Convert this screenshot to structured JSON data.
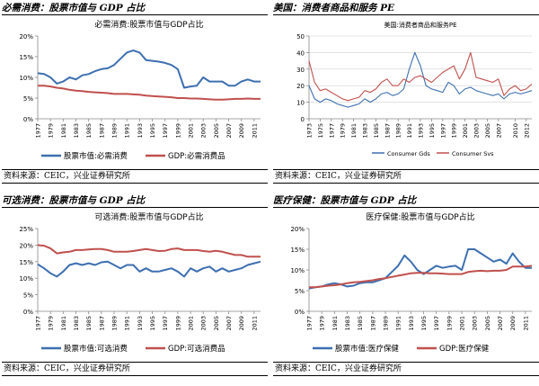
{
  "panels": [
    {
      "header": "必需消费：股票市值与 GDP 占比",
      "footer": "资料来源：CEIC，兴业证券研究所",
      "chart_data": {
        "type": "line",
        "title": "必需消费:股票市值与GDP占比",
        "x": [
          1977,
          1978,
          1979,
          1980,
          1981,
          1982,
          1983,
          1984,
          1985,
          1986,
          1987,
          1988,
          1989,
          1990,
          1991,
          1992,
          1993,
          1994,
          1995,
          1996,
          1997,
          1998,
          1999,
          2000,
          2001,
          2002,
          2003,
          2004,
          2005,
          2006,
          2007,
          2008,
          2009,
          2010,
          2011,
          2012
        ],
        "xticks": [
          1977,
          1979,
          1981,
          1983,
          1985,
          1987,
          1989,
          1991,
          1993,
          1995,
          1997,
          1999,
          2001,
          2003,
          2005,
          2007,
          2009,
          2011
        ],
        "ylim": [
          0,
          20
        ],
        "yticks": [
          0,
          5,
          10,
          15,
          20
        ],
        "yformat": "%",
        "legend_position": "bottom",
        "series": [
          {
            "name": "股票市值:必需消费",
            "color": "#3d6fb0",
            "values": [
              11,
              10.8,
              10,
              8.5,
              9,
              10,
              9.5,
              10.5,
              10.8,
              11.5,
              12,
              12.2,
              13,
              14.5,
              16,
              16.5,
              16,
              14.2,
              14,
              13.8,
              13.5,
              13,
              12,
              7.5,
              7.8,
              8,
              10,
              9,
              9,
              9,
              8,
              8,
              9,
              9.5,
              9,
              9
            ]
          },
          {
            "name": "GDP:必需消费品",
            "color": "#c0504d",
            "values": [
              8,
              8,
              7.8,
              7.5,
              7.3,
              7,
              6.8,
              6.7,
              6.5,
              6.4,
              6.3,
              6.2,
              6,
              6,
              6,
              5.9,
              5.8,
              5.6,
              5.5,
              5.4,
              5.3,
              5.2,
              5,
              5,
              4.9,
              4.9,
              4.8,
              4.7,
              4.6,
              4.6,
              4.7,
              4.8,
              4.8,
              4.9,
              4.8,
              4.8
            ]
          }
        ]
      }
    },
    {
      "header": "美国：消费者商品和服务 PE",
      "footer": "资料来源：CEIC，兴业证券研究所",
      "chart_data": {
        "type": "line",
        "title": "美国:消费者商品和服务PE",
        "x": [
          1973,
          1974,
          1975,
          1976,
          1977,
          1978,
          1979,
          1980,
          1981,
          1982,
          1983,
          1984,
          1985,
          1986,
          1987,
          1988,
          1989,
          1990,
          1991,
          1992,
          1993,
          1994,
          1995,
          1996,
          1997,
          1998,
          1999,
          2000,
          2001,
          2002,
          2003,
          2004,
          2005,
          2006,
          2007,
          2008,
          2009,
          2010,
          2011,
          2012,
          2013
        ],
        "xticks": [
          1973,
          1975,
          1977,
          1979,
          1981,
          1983,
          1985,
          1987,
          1989,
          1991,
          1993,
          1995,
          1997,
          1999,
          2001,
          2003,
          2005,
          2007,
          2010,
          2012
        ],
        "ylim": [
          0,
          50
        ],
        "yticks": [
          0,
          10,
          20,
          30,
          40,
          50
        ],
        "yformat": "",
        "legend_position": "bottom-center",
        "series": [
          {
            "name": "Consumer Gds",
            "color": "#3d6fb0",
            "values": [
              20,
              12,
              10,
              12,
              11,
              9,
              8,
              7,
              8,
              9,
              12,
              10,
              12,
              15,
              16,
              14,
              15,
              18,
              30,
              40,
              32,
              20,
              18,
              17,
              16,
              22,
              20,
              15,
              18,
              19,
              17,
              16,
              15,
              14,
              15,
              12,
              15,
              16,
              15,
              16,
              17
            ]
          },
          {
            "name": "Consumer Svs",
            "color": "#c0504d",
            "values": [
              35,
              22,
              17,
              18,
              16,
              14,
              12,
              11,
              12,
              13,
              17,
              16,
              18,
              22,
              24,
              20,
              20,
              24,
              22,
              25,
              26,
              24,
              22,
              25,
              28,
              30,
              32,
              24,
              30,
              40,
              25,
              24,
              23,
              22,
              24,
              14,
              18,
              20,
              17,
              18,
              21
            ]
          }
        ]
      }
    },
    {
      "header": "可选消费：股票市值与 GDP 占比",
      "footer": "资料来源：CEIC，兴业证券研究所",
      "chart_data": {
        "type": "line",
        "title": "可选消费:股票市值与GDP占比",
        "x": [
          1977,
          1978,
          1979,
          1980,
          1981,
          1982,
          1983,
          1984,
          1985,
          1986,
          1987,
          1988,
          1989,
          1990,
          1991,
          1992,
          1993,
          1994,
          1995,
          1996,
          1997,
          1998,
          1999,
          2000,
          2001,
          2002,
          2003,
          2004,
          2005,
          2006,
          2007,
          2008,
          2009,
          2010,
          2011,
          2012
        ],
        "xticks": [
          1977,
          1979,
          1981,
          1983,
          1985,
          1987,
          1989,
          1991,
          1993,
          1995,
          1997,
          1999,
          2001,
          2003,
          2005,
          2007,
          2009,
          2011
        ],
        "ylim": [
          0,
          25
        ],
        "yticks": [
          0,
          5,
          10,
          15,
          20,
          25
        ],
        "yformat": "%",
        "legend_position": "bottom",
        "series": [
          {
            "name": "股票市值:可选消费",
            "color": "#3d6fb0",
            "values": [
              14.2,
              13,
              11.5,
              10.5,
              12,
              14,
              14.5,
              14,
              14.5,
              14,
              14.8,
              15,
              14,
              13,
              14,
              14,
              12,
              13,
              12,
              12,
              12.5,
              13,
              12,
              10.5,
              13,
              12,
              13,
              13.5,
              12,
              13,
              12,
              12.5,
              13,
              14,
              14.5,
              15
            ]
          },
          {
            "name": "GDP:可选消费品",
            "color": "#c0504d",
            "values": [
              20,
              19.8,
              19,
              17.5,
              17.8,
              18,
              18.5,
              18.5,
              18.7,
              18.8,
              18.8,
              18.5,
              18,
              18,
              18,
              18.2,
              18.5,
              18.8,
              18.5,
              18.2,
              18.3,
              18.8,
              19,
              18.5,
              18.5,
              18.5,
              18.2,
              18,
              18.3,
              18,
              17.5,
              17,
              17,
              16.5,
              16.5,
              16.5
            ]
          }
        ]
      }
    },
    {
      "header": "医疗保健：股票市值与 GDP 占比",
      "footer": "资料来源：CEIC，兴业证券研究所",
      "chart_data": {
        "type": "line",
        "title": "医疗保健:股票市值与GDP占比",
        "x": [
          1977,
          1978,
          1979,
          1980,
          1981,
          1982,
          1983,
          1984,
          1985,
          1986,
          1987,
          1988,
          1989,
          1990,
          1991,
          1992,
          1993,
          1994,
          1995,
          1996,
          1997,
          1998,
          1999,
          2000,
          2001,
          2002,
          2003,
          2004,
          2005,
          2006,
          2007,
          2008,
          2009,
          2010,
          2011,
          2012
        ],
        "xticks": [
          1977,
          1979,
          1981,
          1983,
          1985,
          1987,
          1989,
          1991,
          1993,
          1995,
          1997,
          1999,
          2001,
          2003,
          2005,
          2007,
          2009,
          2011
        ],
        "ylim": [
          0,
          20
        ],
        "yticks": [
          0,
          5,
          10,
          15,
          20
        ],
        "yformat": "%",
        "legend_position": "bottom",
        "series": [
          {
            "name": "股票市值:医疗保健",
            "color": "#3d6fb0",
            "values": [
              5.5,
              5.8,
              6,
              6.5,
              6.8,
              6.5,
              6,
              6.2,
              6.8,
              7,
              7,
              7.5,
              8,
              9.5,
              11,
              13.5,
              12,
              10,
              9,
              10,
              11,
              10.5,
              10.8,
              11,
              10,
              15,
              15,
              14,
              13,
              12,
              12.5,
              11.5,
              14,
              12,
              10.5,
              10.5
            ]
          },
          {
            "name": "GDP:医疗保健",
            "color": "#c0504d",
            "values": [
              5.8,
              5.8,
              6,
              6.2,
              6.3,
              6.5,
              6.8,
              7,
              7.1,
              7.3,
              7.5,
              7.8,
              8,
              8.3,
              8.6,
              8.9,
              9.2,
              9.3,
              9.3,
              9.2,
              9.2,
              9.1,
              9,
              9,
              9,
              9.5,
              9.7,
              9.8,
              9.7,
              9.8,
              9.8,
              10,
              10.8,
              10.8,
              10.8,
              11
            ]
          }
        ]
      }
    }
  ]
}
